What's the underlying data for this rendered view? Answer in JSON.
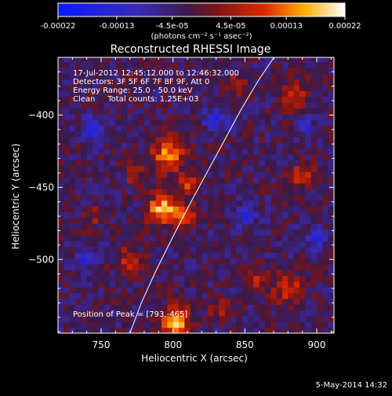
{
  "colorbar": {
    "tick_labels": [
      "-0.00022",
      "-0.00013",
      "-4.5e-05",
      "4.5e-05",
      "0.00013",
      "0.00022"
    ],
    "tick_values": [
      -0.00022,
      -0.00013,
      -4.5e-05,
      4.5e-05,
      0.00013,
      0.00022
    ],
    "range": [
      -0.00022,
      0.00022
    ],
    "unit_label": "(photons cm⁻² s⁻¹ asec⁻²)"
  },
  "info": {
    "time_range": "17-Jul-2012 12:45:12.000 to 12:46:32.000",
    "detectors": "Detectors: 3F 5F 6F 7F 8F 9F, Att 0",
    "energy_range": "Energy Range: 25.0 - 50.0 keV",
    "algorithm_counts": "Clean     Total counts: 1.25E+03",
    "peak_position": "Position of Peak = [793,-465]"
  },
  "footer": {
    "date": "5-May-2014 14:32"
  },
  "chart_data": {
    "type": "heatmap",
    "title": "Reconstructed RHESSI Image",
    "xlabel": "Heliocentric X (arcsec)",
    "ylabel": "Heliocentric Y (arcsec)",
    "xlim": [
      720,
      912
    ],
    "ylim": [
      -551,
      -360
    ],
    "x_ticks": [
      750,
      800,
      850,
      900
    ],
    "y_ticks": [
      -400,
      -450,
      -500
    ],
    "x_tick_labels": [
      "750",
      "800",
      "850",
      "900"
    ],
    "y_tick_labels": [
      "−400",
      "−450",
      "−500"
    ],
    "grid": false,
    "colormap": "blue-purple-red-yellow-white",
    "pixel_size_arcsec": 4,
    "sources": [
      {
        "x": 793,
        "y": -465,
        "peak": 0.00022,
        "sigma": 7
      },
      {
        "x": 797,
        "y": -427,
        "peak": 0.00017,
        "sigma": 8
      },
      {
        "x": 810,
        "y": -447,
        "peak": 0.00011,
        "sigma": 5
      },
      {
        "x": 808,
        "y": -468,
        "peak": 0.00014,
        "sigma": 5
      },
      {
        "x": 802,
        "y": -543,
        "peak": 0.0002,
        "sigma": 7
      },
      {
        "x": 770,
        "y": -500,
        "peak": 0.00012,
        "sigma": 6
      },
      {
        "x": 886,
        "y": -385,
        "peak": 0.0001,
        "sigma": 7
      },
      {
        "x": 890,
        "y": -442,
        "peak": 0.00011,
        "sigma": 6
      },
      {
        "x": 880,
        "y": -520,
        "peak": 0.00012,
        "sigma": 7
      },
      {
        "x": 858,
        "y": -515,
        "peak": 9e-05,
        "sigma": 5
      },
      {
        "x": 845,
        "y": -378,
        "peak": 8e-05,
        "sigma": 5
      },
      {
        "x": 773,
        "y": -440,
        "peak": 8e-05,
        "sigma": 5
      },
      {
        "x": 833,
        "y": -535,
        "peak": 8e-05,
        "sigma": 5
      },
      {
        "x": 744,
        "y": -470,
        "peak": 7e-05,
        "sigma": 5
      },
      {
        "x": 745,
        "y": -410,
        "peak": -0.00013,
        "sigma": 6
      },
      {
        "x": 830,
        "y": -402,
        "peak": -0.0001,
        "sigma": 6
      },
      {
        "x": 738,
        "y": -500,
        "peak": -0.00011,
        "sigma": 5
      },
      {
        "x": 850,
        "y": -470,
        "peak": -0.0001,
        "sigma": 6
      },
      {
        "x": 899,
        "y": -485,
        "peak": -0.0001,
        "sigma": 5
      },
      {
        "x": 892,
        "y": -408,
        "peak": -9e-05,
        "sigma": 5
      }
    ],
    "limb_curve": {
      "x": [
        770,
        778,
        788,
        800,
        812,
        824,
        836,
        848,
        860,
        873
      ],
      "y": [
        -551,
        -530,
        -508,
        -484,
        -461,
        -439,
        -417,
        -395,
        -375,
        -356
      ]
    },
    "peak": {
      "x": 793,
      "y": -465
    }
  }
}
